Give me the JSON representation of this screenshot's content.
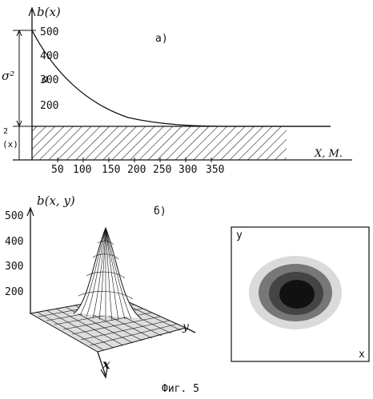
{
  "panel_a": {
    "label": "а)",
    "y_axis_label": "b(x)",
    "y_ticks": [
      "500",
      "400",
      "300",
      "200"
    ],
    "x_ticks": [
      "50",
      "100",
      "150",
      "200",
      "250",
      "300",
      "350"
    ],
    "x_axis_label": "X, M.",
    "sigma_label": "σ²",
    "b_label": "a",
    "lower_label": "(x)",
    "lower_exp": "2"
  },
  "panel_b": {
    "label": "б)",
    "z_axis_label": "b(x, y)",
    "z_ticks": [
      "500",
      "400",
      "300",
      "200"
    ],
    "surface_x_label": "x",
    "surface_y_label": "y",
    "map_y_label": "y",
    "map_x_label": "x"
  },
  "caption": "Фиг. 5"
}
